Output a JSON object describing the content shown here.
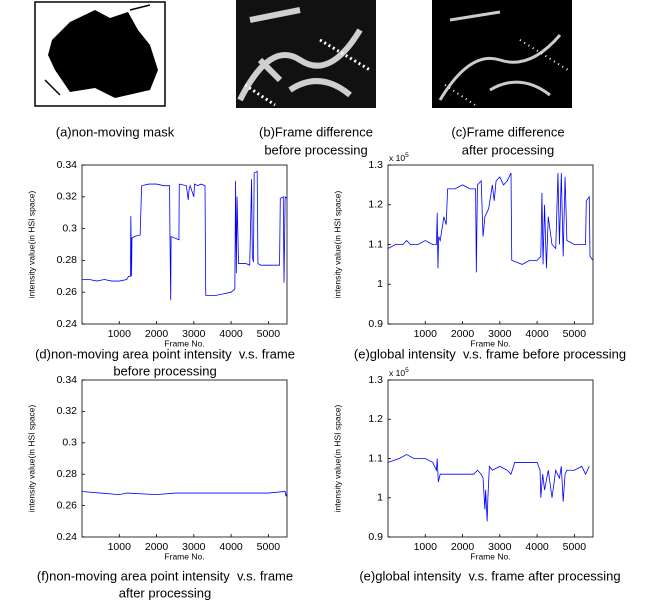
{
  "images": [
    {
      "caption": [
        "(a)non-moving mask"
      ]
    },
    {
      "caption": [
        "(b)Frame difference",
        "before processing"
      ]
    },
    {
      "caption": [
        "(c)Frame difference",
        "after processing"
      ]
    }
  ],
  "chart_data": [
    {
      "type": "line",
      "caption": [
        "(d)non-moving area point intensity  v.s. frame",
        "before processing"
      ],
      "x_label": "Frame No.",
      "y_label": "intensity value(in HSI space)",
      "xlim": [
        0,
        5500
      ],
      "xticks": [
        1000,
        2000,
        3000,
        4000,
        5000
      ],
      "ylim": [
        0.24,
        0.34
      ],
      "yticks": [
        0.24,
        0.26,
        0.28,
        0.3,
        0.32,
        0.34
      ],
      "color": "#0000ff",
      "x": [
        0,
        200,
        400,
        600,
        800,
        1000,
        1200,
        1250,
        1300,
        1310,
        1330,
        1340,
        1400,
        1560,
        1600,
        1800,
        2000,
        2200,
        2350,
        2360,
        2380,
        2390,
        2600,
        2610,
        2800,
        2850,
        2870,
        2900,
        3000,
        3020,
        3100,
        3200,
        3300,
        3320,
        3600,
        3800,
        4000,
        4100,
        4120,
        4140,
        4160,
        4200,
        4400,
        4500,
        4550,
        4570,
        4600,
        4620,
        4700,
        4720,
        4800,
        5000,
        5200,
        5300,
        5320,
        5400,
        5420,
        5450,
        5500
      ],
      "values": [
        0.268,
        0.268,
        0.267,
        0.268,
        0.267,
        0.267,
        0.268,
        0.27,
        0.27,
        0.308,
        0.27,
        0.294,
        0.295,
        0.296,
        0.327,
        0.328,
        0.328,
        0.327,
        0.327,
        0.295,
        0.255,
        0.295,
        0.293,
        0.328,
        0.327,
        0.318,
        0.324,
        0.327,
        0.32,
        0.328,
        0.327,
        0.328,
        0.327,
        0.258,
        0.258,
        0.259,
        0.26,
        0.262,
        0.33,
        0.272,
        0.32,
        0.278,
        0.278,
        0.277,
        0.331,
        0.282,
        0.279,
        0.335,
        0.336,
        0.278,
        0.277,
        0.277,
        0.277,
        0.277,
        0.319,
        0.32,
        0.266,
        0.32,
        0.319
      ]
    },
    {
      "type": "line",
      "caption": [
        "(e)global intensity  v.s. frame before processing"
      ],
      "x_label": "Frame No.",
      "y_label": "intensity value(in HSI space)",
      "y_scale_base": "x 10",
      "y_scale_exponent": "5",
      "xlim": [
        0,
        5500
      ],
      "xticks": [
        1000,
        2000,
        3000,
        4000,
        5000
      ],
      "ylim": [
        0.9,
        1.3
      ],
      "yticks": [
        0.9,
        1,
        1.1,
        1.2,
        1.3
      ],
      "color": "#0000ff",
      "x": [
        0,
        200,
        400,
        500,
        600,
        800,
        1000,
        1200,
        1300,
        1320,
        1340,
        1360,
        1400,
        1500,
        1560,
        1600,
        1800,
        2000,
        2200,
        2350,
        2370,
        2400,
        2500,
        2550,
        2600,
        2700,
        2800,
        2850,
        2900,
        3000,
        3100,
        3200,
        3300,
        3320,
        3600,
        3800,
        4000,
        4100,
        4130,
        4160,
        4200,
        4250,
        4300,
        4400,
        4500,
        4560,
        4600,
        4650,
        4700,
        4750,
        4800,
        5000,
        5200,
        5300,
        5320,
        5400,
        5420,
        5500
      ],
      "values": [
        1.09,
        1.1,
        1.1,
        1.11,
        1.1,
        1.1,
        1.11,
        1.1,
        1.1,
        1.18,
        1.04,
        1.12,
        1.11,
        1.17,
        1.15,
        1.24,
        1.24,
        1.25,
        1.24,
        1.24,
        1.03,
        1.25,
        1.26,
        1.12,
        1.17,
        1.19,
        1.25,
        1.21,
        1.26,
        1.27,
        1.25,
        1.26,
        1.28,
        1.06,
        1.05,
        1.06,
        1.06,
        1.07,
        1.23,
        1.05,
        1.2,
        1.04,
        1.17,
        1.1,
        1.09,
        1.28,
        1.1,
        1.28,
        1.07,
        1.27,
        1.11,
        1.1,
        1.1,
        1.1,
        1.21,
        1.22,
        1.07,
        1.06
      ]
    },
    {
      "type": "line",
      "caption": [
        "(f)non-moving area point intensity  v.s. frame",
        "after processing"
      ],
      "x_label": "Frame No.",
      "y_label": "intensity value(in HSI space)",
      "xlim": [
        0,
        5500
      ],
      "xticks": [
        1000,
        2000,
        3000,
        4000,
        5000
      ],
      "ylim": [
        0.24,
        0.34
      ],
      "yticks": [
        0.24,
        0.26,
        0.28,
        0.3,
        0.32,
        0.34
      ],
      "color": "#0000ff",
      "x": [
        0,
        500,
        1000,
        1200,
        2000,
        2500,
        3000,
        4000,
        5000,
        5450,
        5470,
        5500
      ],
      "values": [
        0.269,
        0.268,
        0.267,
        0.268,
        0.267,
        0.268,
        0.268,
        0.268,
        0.268,
        0.269,
        0.266,
        0.268
      ]
    },
    {
      "type": "line",
      "caption": [
        "(e)global intensity  v.s. frame after processing"
      ],
      "x_label": "Frame No.",
      "y_label": "intensity value(in HSI space)",
      "y_scale_base": "x 10",
      "y_scale_exponent": "5",
      "xlim": [
        0,
        5500
      ],
      "xticks": [
        1000,
        2000,
        3000,
        4000,
        5000
      ],
      "ylim": [
        0.9,
        1.3
      ],
      "yticks": [
        0.9,
        1,
        1.1,
        1.2,
        1.3
      ],
      "color": "#0000ff",
      "x": [
        0,
        300,
        500,
        700,
        1000,
        1200,
        1300,
        1320,
        1350,
        1400,
        1600,
        2000,
        2300,
        2400,
        2500,
        2550,
        2600,
        2620,
        2660,
        2680,
        2720,
        2800,
        3000,
        3200,
        3300,
        3400,
        3600,
        3800,
        4000,
        4080,
        4100,
        4150,
        4200,
        4300,
        4400,
        4500,
        4600,
        4650,
        4700,
        4750,
        4800,
        5000,
        5200,
        5300,
        5400
      ],
      "values": [
        1.09,
        1.1,
        1.11,
        1.1,
        1.1,
        1.09,
        1.07,
        1.1,
        1.04,
        1.06,
        1.06,
        1.06,
        1.06,
        1.07,
        1.06,
        1.05,
        0.97,
        1.02,
        0.94,
        1.0,
        1.08,
        1.07,
        1.08,
        1.07,
        1.06,
        1.09,
        1.09,
        1.09,
        1.09,
        1.07,
        1.0,
        1.06,
        1.02,
        1.07,
        1.0,
        1.07,
        1.05,
        1.08,
        0.99,
        1.06,
        1.07,
        1.07,
        1.08,
        1.06,
        1.08
      ]
    }
  ]
}
